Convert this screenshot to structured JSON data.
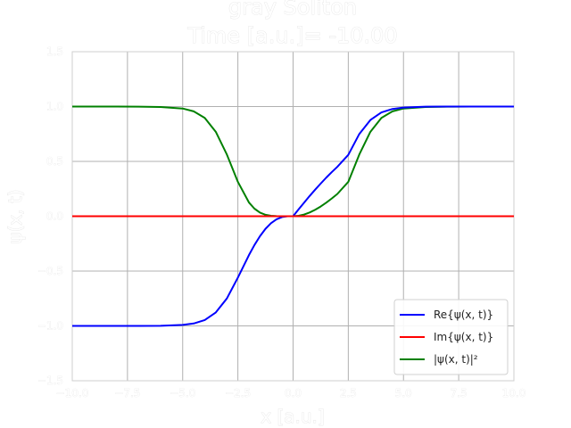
{
  "chart_data": {
    "type": "line",
    "title_line1": "gray Soliton",
    "title_line2": "Time [a.u.]= -10.00",
    "xlabel": "x [a.u.]",
    "ylabel": "ψ(x, t)",
    "xlim": [
      -10,
      10
    ],
    "ylim": [
      -1.5,
      1.5
    ],
    "grid": true,
    "legend_position": "lower-right",
    "x_ticks": [
      {
        "value": -10,
        "label": "−10.0"
      },
      {
        "value": -7.5,
        "label": "−7.5"
      },
      {
        "value": -5,
        "label": "−5.0"
      },
      {
        "value": -2.5,
        "label": "−2.5"
      },
      {
        "value": 0,
        "label": "0.0"
      },
      {
        "value": 2.5,
        "label": "2.5"
      },
      {
        "value": 5,
        "label": "5.0"
      },
      {
        "value": 7.5,
        "label": "7.5"
      },
      {
        "value": 10,
        "label": "10.0"
      }
    ],
    "y_ticks": [
      {
        "value": -1.5,
        "label": "−1.5"
      },
      {
        "value": -1.0,
        "label": "−1.0"
      },
      {
        "value": -0.5,
        "label": "−0.5"
      },
      {
        "value": 0.0,
        "label": "0.0"
      },
      {
        "value": 0.5,
        "label": "0.5"
      },
      {
        "value": 1.0,
        "label": "1.0"
      },
      {
        "value": 1.5,
        "label": "1.5"
      }
    ],
    "x": [
      -10,
      -9,
      -8,
      -7,
      -6,
      -5,
      -4.5,
      -4,
      -3.5,
      -3,
      -2.5,
      -2,
      -1.75,
      -1.5,
      -1.25,
      -1,
      -0.75,
      -0.5,
      -0.25,
      0,
      0.25,
      0.5,
      0.75,
      1,
      1.25,
      1.5,
      1.75,
      2,
      2.5,
      3,
      3.5,
      4,
      4.5,
      5,
      6,
      7,
      8,
      9,
      10
    ],
    "series": [
      {
        "name": "Re{ψ(x, t)}",
        "color": "#0000ff",
        "values": [
          -1.0,
          -1.0,
          -1.0,
          -0.9998,
          -0.9988,
          -0.9909,
          -0.978,
          -0.9468,
          -0.8773,
          -0.7504,
          -0.5597,
          -0.3547,
          -0.2628,
          -0.1818,
          -0.1148,
          -0.0637,
          -0.0282,
          -0.0073,
          0.0,
          0.0,
          0.0625,
          0.1244,
          0.1846,
          0.2423,
          0.2978,
          0.3516,
          0.4021,
          0.4498,
          0.5597,
          0.7504,
          0.8773,
          0.9468,
          0.978,
          0.9909,
          0.9988,
          0.9998,
          1.0,
          1.0,
          1.0
        ]
      },
      {
        "name": "Im{ψ(x, t)}",
        "color": "#ff0000",
        "values": [
          0,
          0,
          0,
          0,
          0,
          0,
          0,
          0,
          0,
          0,
          0,
          0,
          0,
          0,
          0,
          0,
          0,
          0,
          0,
          0,
          0,
          0,
          0,
          0,
          0,
          0,
          0,
          0,
          0,
          0,
          0,
          0,
          0,
          0,
          0,
          0,
          0,
          0,
          0
        ]
      },
      {
        "name": "|ψ(x, t)|²",
        "color": "#008000",
        "values": [
          1.0,
          0.9999,
          0.9995,
          0.9986,
          0.9961,
          0.982,
          0.9565,
          0.8965,
          0.7697,
          0.5631,
          0.3133,
          0.1258,
          0.0691,
          0.0331,
          0.0132,
          0.0041,
          0.0008,
          0.0001,
          0.0,
          0.0,
          0.0039,
          0.0155,
          0.0341,
          0.0587,
          0.0887,
          0.1236,
          0.1617,
          0.2023,
          0.3133,
          0.5631,
          0.7697,
          0.8965,
          0.9565,
          0.982,
          0.9961,
          0.9986,
          0.9995,
          0.9999,
          1.0
        ]
      }
    ]
  }
}
